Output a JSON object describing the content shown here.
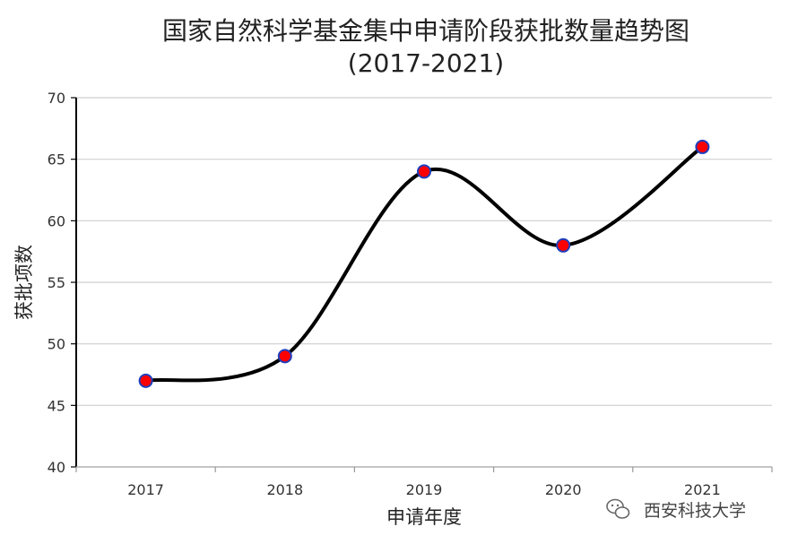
{
  "chart_data": {
    "type": "line",
    "title": "国家自然科学基金集中申请阶段获批数量趋势图",
    "subtitle": "(2017-2021)",
    "xlabel": "申请年度",
    "ylabel": "获批项数",
    "categories": [
      "2017",
      "2018",
      "2019",
      "2020",
      "2021"
    ],
    "series": [
      {
        "values": [
          47,
          49,
          64,
          58,
          66
        ]
      }
    ],
    "ylim": [
      40,
      70
    ],
    "yticks": [
      40,
      45,
      50,
      55,
      60,
      65,
      70
    ],
    "grid": true,
    "smooth": true,
    "line_color": "#000000",
    "marker_fill": "#ff0000",
    "marker_stroke": "#1f3fbf"
  },
  "watermark": {
    "text": "西安科技大学",
    "icon": "wechat-icon"
  }
}
